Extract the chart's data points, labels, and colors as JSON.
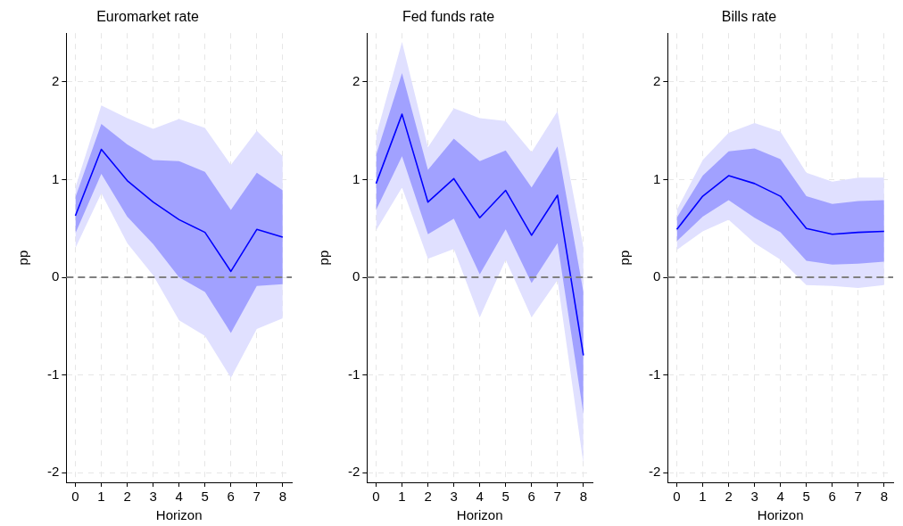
{
  "chart_data": [
    {
      "type": "line",
      "title": "Euromarket rate",
      "xlabel": "Horizon",
      "ylabel": "pp",
      "x": [
        0,
        1,
        2,
        3,
        4,
        5,
        6,
        7,
        8
      ],
      "xlim": [
        -0.35,
        8.35
      ],
      "xticks": [
        0,
        1,
        2,
        3,
        4,
        5,
        6,
        7,
        8
      ],
      "ylim": [
        -2.1,
        2.5
      ],
      "yticks": [
        -2,
        -1,
        0,
        1,
        2
      ],
      "grid": true,
      "legend": false,
      "marker": "none",
      "line_style": "solid",
      "ref_lines": [
        {
          "axis": "y",
          "value": 0,
          "color": "#808080",
          "line_style": "dashed"
        }
      ],
      "series": [
        {
          "color": "#e0e0ff",
          "values": [
            null,
            null,
            null,
            null,
            null,
            null,
            null,
            null,
            null
          ],
          "lower": [
            0.3,
            0.86,
            0.35,
            0.02,
            -0.44,
            -0.6,
            -1.03,
            -0.53,
            -0.42
          ],
          "upper": [
            0.92,
            1.76,
            1.63,
            1.52,
            1.62,
            1.53,
            1.15,
            1.5,
            1.24
          ]
        },
        {
          "color": "#0000ff",
          "values": [
            0.63,
            1.31,
            0.99,
            0.77,
            0.59,
            0.46,
            0.06,
            0.49,
            0.41
          ],
          "lower": [
            0.45,
            1.06,
            0.62,
            0.34,
            0.0,
            -0.15,
            -0.57,
            -0.09,
            -0.07
          ],
          "upper": [
            0.82,
            1.57,
            1.36,
            1.2,
            1.19,
            1.08,
            0.69,
            1.07,
            0.89
          ]
        }
      ]
    },
    {
      "type": "line",
      "title": "Fed funds rate",
      "xlabel": "Horizon",
      "ylabel": "pp",
      "x": [
        0,
        1,
        2,
        3,
        4,
        5,
        6,
        7,
        8
      ],
      "xlim": [
        -0.35,
        8.35
      ],
      "xticks": [
        0,
        1,
        2,
        3,
        4,
        5,
        6,
        7,
        8
      ],
      "ylim": [
        -2.1,
        2.5
      ],
      "yticks": [
        -2,
        -1,
        0,
        1,
        2
      ],
      "grid": true,
      "legend": false,
      "marker": "none",
      "line_style": "solid",
      "ref_lines": [
        {
          "axis": "y",
          "value": 0,
          "color": "#808080",
          "line_style": "dashed"
        }
      ],
      "series": [
        {
          "color": "#e0e0ff",
          "values": [
            null,
            null,
            null,
            null,
            null,
            null,
            null,
            null,
            null
          ],
          "lower": [
            0.48,
            0.92,
            0.19,
            0.29,
            -0.41,
            0.18,
            -0.41,
            -0.03,
            -1.91
          ],
          "upper": [
            1.45,
            2.41,
            1.33,
            1.73,
            1.63,
            1.6,
            1.28,
            1.7,
            0.31
          ]
        },
        {
          "color": "#0000ff",
          "values": [
            0.96,
            1.67,
            0.77,
            1.01,
            0.61,
            0.89,
            0.43,
            0.84,
            -0.8
          ],
          "lower": [
            0.69,
            1.24,
            0.44,
            0.6,
            0.03,
            0.49,
            -0.06,
            0.35,
            -1.4
          ],
          "upper": [
            1.25,
            2.09,
            1.1,
            1.42,
            1.19,
            1.3,
            0.92,
            1.34,
            -0.15
          ]
        }
      ]
    },
    {
      "type": "line",
      "title": "Bills rate",
      "xlabel": "Horizon",
      "ylabel": "pp",
      "x": [
        0,
        1,
        2,
        3,
        4,
        5,
        6,
        7,
        8
      ],
      "xlim": [
        -0.35,
        8.35
      ],
      "xticks": [
        0,
        1,
        2,
        3,
        4,
        5,
        6,
        7,
        8
      ],
      "ylim": [
        -2.1,
        2.5
      ],
      "yticks": [
        -2,
        -1,
        0,
        1,
        2
      ],
      "grid": true,
      "legend": false,
      "marker": "none",
      "line_style": "solid",
      "ref_lines": [
        {
          "axis": "y",
          "value": 0,
          "color": "#808080",
          "line_style": "dashed"
        }
      ],
      "series": [
        {
          "color": "#e0e0ff",
          "values": [
            null,
            null,
            null,
            null,
            null,
            null,
            null,
            null,
            null
          ],
          "lower": [
            0.28,
            0.47,
            0.59,
            0.35,
            0.18,
            -0.08,
            -0.09,
            -0.11,
            -0.08
          ],
          "upper": [
            0.69,
            1.2,
            1.48,
            1.58,
            1.49,
            1.07,
            0.98,
            1.02,
            1.02
          ]
        },
        {
          "color": "#0000ff",
          "values": [
            0.49,
            0.83,
            1.04,
            0.96,
            0.83,
            0.5,
            0.44,
            0.46,
            0.47
          ],
          "lower": [
            0.37,
            0.62,
            0.79,
            0.61,
            0.46,
            0.17,
            0.13,
            0.14,
            0.16
          ],
          "upper": [
            0.61,
            1.04,
            1.29,
            1.32,
            1.21,
            0.83,
            0.75,
            0.78,
            0.79
          ]
        }
      ]
    }
  ]
}
